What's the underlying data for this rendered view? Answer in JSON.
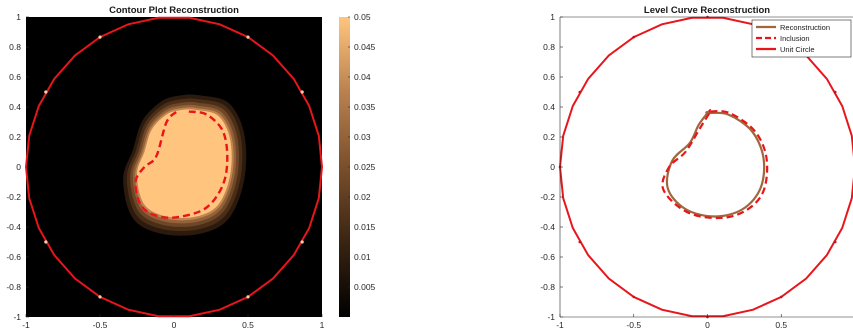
{
  "chart_data": [
    {
      "type": "heatmap",
      "title": "Contour Plot Reconstruction",
      "xlabel": "",
      "ylabel": "",
      "xlim": [
        -1,
        1
      ],
      "ylim": [
        -1,
        1
      ],
      "xticks": [
        "-1",
        "-0.5",
        "0",
        "0.5",
        "1"
      ],
      "yticks": [
        "1",
        "0.8",
        "0.6",
        "0.4",
        "0.2",
        "0",
        "-0.2",
        "-0.4",
        "-0.6",
        "-0.8",
        "-1"
      ],
      "colorbar": {
        "min": 0,
        "max": 0.05,
        "ticks": [
          "0.05",
          "0.045",
          "0.04",
          "0.035",
          "0.03",
          "0.025",
          "0.02",
          "0.015",
          "0.01",
          "0.005"
        ],
        "colormap": [
          "#000000",
          "#3a2412",
          "#7a4f2b",
          "#b98150",
          "#ffc57e"
        ]
      },
      "background_color": "#000000",
      "grid": false,
      "filled_region": {
        "x": [
          0.15,
          0.3,
          0.38,
          0.38,
          0.3,
          0.15,
          -0.05,
          -0.2,
          -0.25,
          -0.2,
          -0.15,
          -0.05,
          0.05
        ],
        "y": [
          0.38,
          0.34,
          0.18,
          -0.05,
          -0.25,
          -0.33,
          -0.33,
          -0.25,
          -0.05,
          0.1,
          0.25,
          0.35,
          0.38
        ]
      },
      "inclusion": {
        "color": "#e8151b",
        "x": [
          0.1,
          0.22,
          0.33,
          0.36,
          0.33,
          0.22,
          0.05,
          -0.1,
          -0.22,
          -0.26,
          -0.2,
          -0.12,
          -0.05,
          0.02
        ],
        "y": [
          0.37,
          0.35,
          0.24,
          0.06,
          -0.12,
          -0.27,
          -0.33,
          -0.33,
          -0.26,
          -0.1,
          0.0,
          0.07,
          0.3,
          0.37
        ]
      },
      "unit_circle": {
        "color": "#e8151b",
        "radius": 1
      }
    },
    {
      "type": "line",
      "title": "Level Curve Reconstruction",
      "xlabel": "",
      "ylabel": "",
      "xlim": [
        -1,
        1
      ],
      "ylim": [
        -1,
        1
      ],
      "xticks": [
        "-1",
        "-0.5",
        "0",
        "0.5"
      ],
      "yticks": [
        "1",
        "0.8",
        "0.6",
        "0.4",
        "0.2",
        "0",
        "-0.2",
        "-0.4",
        "-0.6",
        "-0.8",
        "-1"
      ],
      "legend_position": "top-right",
      "grid": false,
      "series": [
        {
          "name": "Reconstruction",
          "color": "#a0673c",
          "style": "solid",
          "x": [
            0.0,
            0.14,
            0.3,
            0.38,
            0.36,
            0.24,
            0.05,
            -0.15,
            -0.27,
            -0.24,
            -0.12,
            -0.06,
            0.0
          ],
          "y": [
            0.36,
            0.35,
            0.24,
            0.06,
            -0.14,
            -0.28,
            -0.33,
            -0.28,
            -0.14,
            0.04,
            0.16,
            0.28,
            0.36
          ]
        },
        {
          "name": "Inclusion",
          "color": "#e8151b",
          "style": "dashed",
          "x": [
            0.02,
            0.15,
            0.32,
            0.4,
            0.38,
            0.26,
            0.08,
            -0.14,
            -0.3,
            -0.26,
            -0.15,
            -0.05,
            0.02
          ],
          "y": [
            0.37,
            0.36,
            0.24,
            0.06,
            -0.16,
            -0.29,
            -0.34,
            -0.3,
            -0.15,
            0.0,
            0.1,
            0.26,
            0.37
          ]
        },
        {
          "name": "Unit Circle",
          "color": "#e8151b",
          "style": "solid",
          "shape": "circle",
          "radius": 1
        }
      ]
    }
  ]
}
